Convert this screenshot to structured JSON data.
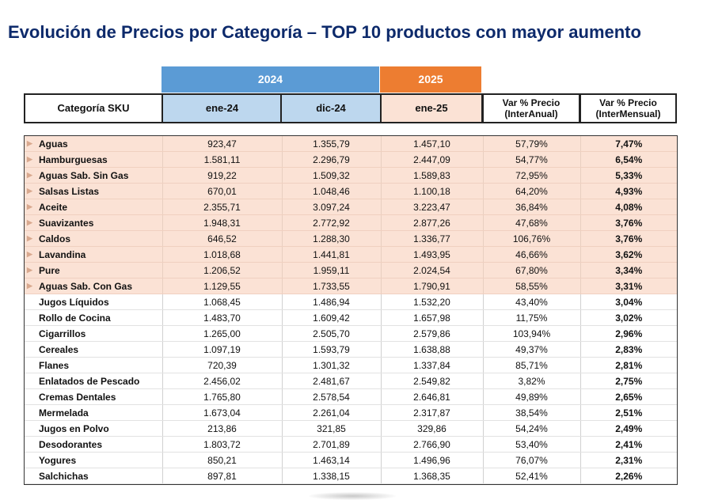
{
  "title": "Evolución de Precios por Categoría – TOP 10 productos con mayor aumento",
  "years": {
    "y2024": "2024",
    "y2025": "2025"
  },
  "headers": {
    "category": "Categoría SKU",
    "ene24": "ene-24",
    "dic24": "dic-24",
    "ene25": "ene-25",
    "var_interanual": "Var % Precio (InterAnual)",
    "var_intermensual": "Var % Precio (InterMensual)"
  },
  "colors": {
    "title": "#0d2a6b",
    "year_2024": "#5b9bd5",
    "year_2025": "#ed7d31",
    "header_2024": "#bdd7ee",
    "header_2025": "#fbe2d5",
    "highlight_row": "#fbe2d5"
  },
  "chart_data": {
    "type": "table",
    "title": "Evolución de Precios por Categoría – TOP 10 productos con mayor aumento",
    "columns": [
      "Categoría SKU",
      "ene-24",
      "dic-24",
      "ene-25",
      "Var % Precio (InterAnual)",
      "Var % Precio (InterMensual)"
    ],
    "highlighted_top": 10,
    "rows": [
      [
        "Aguas",
        "923,47",
        "1.355,79",
        "1.457,10",
        "57,79%",
        "7,47%"
      ],
      [
        "Hamburguesas",
        "1.581,11",
        "2.296,79",
        "2.447,09",
        "54,77%",
        "6,54%"
      ],
      [
        "Aguas Sab. Sin Gas",
        "919,22",
        "1.509,32",
        "1.589,83",
        "72,95%",
        "5,33%"
      ],
      [
        "Salsas Listas",
        "670,01",
        "1.048,46",
        "1.100,18",
        "64,20%",
        "4,93%"
      ],
      [
        "Aceite",
        "2.355,71",
        "3.097,24",
        "3.223,47",
        "36,84%",
        "4,08%"
      ],
      [
        "Suavizantes",
        "1.948,31",
        "2.772,92",
        "2.877,26",
        "47,68%",
        "3,76%"
      ],
      [
        "Caldos",
        "646,52",
        "1.288,30",
        "1.336,77",
        "106,76%",
        "3,76%"
      ],
      [
        "Lavandina",
        "1.018,68",
        "1.441,81",
        "1.493,95",
        "46,66%",
        "3,62%"
      ],
      [
        "Pure",
        "1.206,52",
        "1.959,11",
        "2.024,54",
        "67,80%",
        "3,34%"
      ],
      [
        "Aguas Sab. Con Gas",
        "1.129,55",
        "1.733,55",
        "1.790,91",
        "58,55%",
        "3,31%"
      ],
      [
        "Jugos Líquidos",
        "1.068,45",
        "1.486,94",
        "1.532,20",
        "43,40%",
        "3,04%"
      ],
      [
        "Rollo de Cocina",
        "1.483,70",
        "1.609,42",
        "1.657,98",
        "11,75%",
        "3,02%"
      ],
      [
        "Cigarrillos",
        "1.265,00",
        "2.505,70",
        "2.579,86",
        "103,94%",
        "2,96%"
      ],
      [
        "Cereales",
        "1.097,19",
        "1.593,79",
        "1.638,88",
        "49,37%",
        "2,83%"
      ],
      [
        "Flanes",
        "720,39",
        "1.301,32",
        "1.337,84",
        "85,71%",
        "2,81%"
      ],
      [
        "Enlatados de Pescado",
        "2.456,02",
        "2.481,67",
        "2.549,82",
        "3,82%",
        "2,75%"
      ],
      [
        "Cremas Dentales",
        "1.765,80",
        "2.578,54",
        "2.646,81",
        "49,89%",
        "2,65%"
      ],
      [
        "Mermelada",
        "1.673,04",
        "2.261,04",
        "2.317,87",
        "38,54%",
        "2,51%"
      ],
      [
        "Jugos en Polvo",
        "213,86",
        "321,85",
        "329,86",
        "54,24%",
        "2,49%"
      ],
      [
        "Desodorantes",
        "1.803,72",
        "2.701,89",
        "2.766,90",
        "53,40%",
        "2,41%"
      ],
      [
        "Yogures",
        "850,21",
        "1.463,14",
        "1.496,96",
        "76,07%",
        "2,31%"
      ],
      [
        "Salchichas",
        "897,81",
        "1.338,15",
        "1.368,35",
        "52,41%",
        "2,26%"
      ]
    ]
  }
}
